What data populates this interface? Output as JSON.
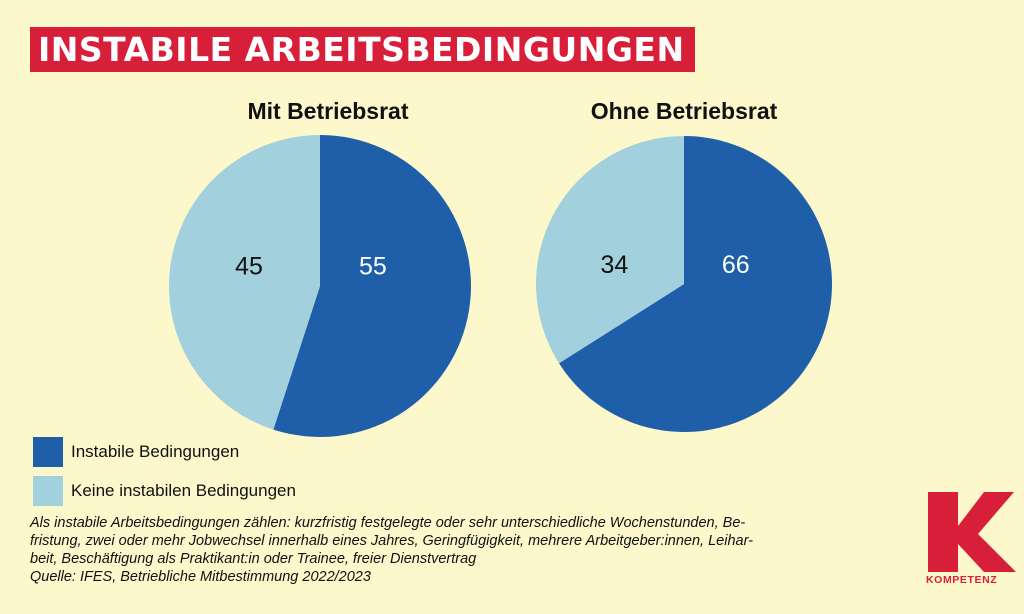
{
  "title": "INSTABILE ARBEITSBEDINGUNGEN",
  "colors": {
    "instabil": "#1f5faa",
    "keine": "#a3d0dd",
    "accent": "#d81f3a",
    "background": "#fdf7cc"
  },
  "chart_data": [
    {
      "type": "pie",
      "title": "Mit Betriebsrat",
      "categories": [
        "Instabile Bedingungen",
        "Keine instabilen Bedingungen"
      ],
      "values": [
        55,
        45
      ],
      "labels": [
        "55",
        "45"
      ]
    },
    {
      "type": "pie",
      "title": "Ohne Betriebsrat",
      "categories": [
        "Instabile Bedingungen",
        "Keine instabilen Bedingungen"
      ],
      "values": [
        66,
        34
      ],
      "labels": [
        "66",
        "34"
      ]
    }
  ],
  "legend": [
    {
      "label": "Instabile Bedingungen"
    },
    {
      "label": "Keine instabilen Bedingungen"
    }
  ],
  "footnote": {
    "lines": [
      "Als instabile Arbeitsbedingungen zählen: kurzfristig festgelegte oder sehr unterschiedliche Wochenstunden, Be-",
      "fristung, zwei oder mehr Jobwechsel innerhalb eines Jahres, Geringfügigkeit, mehrere Arbeitgeber:innen, Leihar-",
      "beit, Beschäftigung als Praktikant:in oder Trainee, freier Dienstvertrag"
    ],
    "source": "Quelle: IFES, Betriebliche Mitbestimmung 2022/2023"
  },
  "logo": {
    "icon": "k-logo-icon",
    "letter": "K",
    "text": "KOMPETENZ"
  }
}
